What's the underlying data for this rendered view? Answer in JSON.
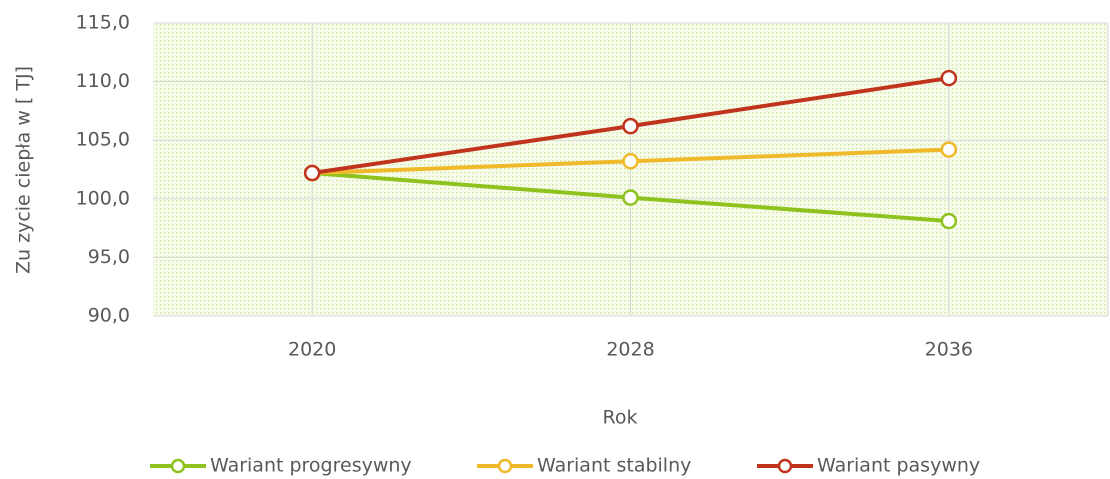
{
  "chart_data": {
    "type": "line",
    "x_label": "Rok",
    "y_label": "Zu zycie ciepła w [ TJ]",
    "categories": [
      "2020",
      "2028",
      "2036"
    ],
    "series": [
      {
        "name": "Wariant progresywny",
        "color": "#8dc21f",
        "values": [
          102.2,
          100.1,
          98.1
        ]
      },
      {
        "name": "Wariant stabilny",
        "color": "#f0b92a",
        "values": [
          102.2,
          103.2,
          104.2
        ]
      },
      {
        "name": "Wariant pasywny",
        "color": "#c0341d",
        "values": [
          102.2,
          106.2,
          110.3
        ]
      }
    ],
    "ylim": [
      90,
      115
    ],
    "yticks": [
      {
        "value": 90,
        "label": "90,0"
      },
      {
        "value": 95,
        "label": "95,0"
      },
      {
        "value": 100,
        "label": "100,0"
      },
      {
        "value": 105,
        "label": "105,0"
      },
      {
        "value": 110,
        "label": "110,0"
      },
      {
        "value": 115,
        "label": "115,0"
      }
    ],
    "grid": true,
    "legend": "bottom"
  }
}
